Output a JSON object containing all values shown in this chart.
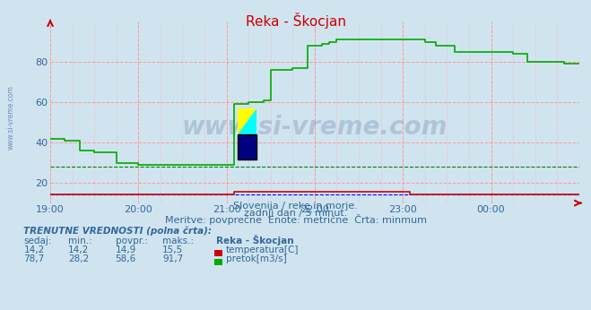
{
  "title": "Reka - Škocjan",
  "background_color": "#d0e4f0",
  "plot_bg_color": "#d0e4f0",
  "grid_color": "#ff9999",
  "xlim": [
    0,
    288
  ],
  "ylim": [
    10,
    100
  ],
  "yticks": [
    20,
    40,
    60,
    80
  ],
  "xtick_labels": [
    "19:00",
    "20:00",
    "21:00",
    "22:00",
    "23:00",
    "00:00"
  ],
  "xtick_positions": [
    0,
    48,
    96,
    144,
    192,
    240
  ],
  "subtitle1": "Slovenija / reke in morje.",
  "subtitle2": "zadnji dan / 5 minut.",
  "subtitle3": "Meritve: povprečne  Enote: metrične  Črta: minmum",
  "watermark": "www.si-vreme.com",
  "side_text": "www.si-vreme.com",
  "temp_color": "#cc0000",
  "flow_color": "#00aa00",
  "min_line_color_temp": "#0000ff",
  "min_line_color_flow": "#008800",
  "temp_min_y": 14.2,
  "flow_min_y": 28.2,
  "temp_data": [
    [
      0,
      14.5
    ],
    [
      96,
      14.5
    ],
    [
      100,
      15.5
    ],
    [
      192,
      15.5
    ],
    [
      196,
      14.2
    ],
    [
      240,
      14.2
    ],
    [
      288,
      14.2
    ]
  ],
  "flow_data": [
    [
      0,
      42
    ],
    [
      8,
      41
    ],
    [
      16,
      36
    ],
    [
      24,
      35
    ],
    [
      36,
      30
    ],
    [
      48,
      29
    ],
    [
      96,
      29
    ],
    [
      100,
      59
    ],
    [
      108,
      60
    ],
    [
      116,
      61
    ],
    [
      120,
      76
    ],
    [
      132,
      77
    ],
    [
      140,
      88
    ],
    [
      148,
      89
    ],
    [
      152,
      90
    ],
    [
      156,
      91
    ],
    [
      196,
      91
    ],
    [
      204,
      90
    ],
    [
      210,
      88
    ],
    [
      220,
      85
    ],
    [
      240,
      85
    ],
    [
      252,
      84
    ],
    [
      260,
      80
    ],
    [
      270,
      80
    ],
    [
      280,
      79
    ],
    [
      288,
      79
    ]
  ],
  "legend_items": [
    {
      "label": "temperatura[C]",
      "color": "#cc0000"
    },
    {
      "label": "pretok[m3/s]",
      "color": "#00aa00"
    }
  ],
  "table_title": "TRENUTNE VREDNOSTI (polna črta):",
  "table_headers": [
    "sedaj:",
    "min.:",
    "povpr.:",
    "maks.:",
    "Reka - Škocjan"
  ],
  "table_row1": [
    "14,2",
    "14,2",
    "14,9",
    "15,5"
  ],
  "table_row2": [
    "78,7",
    "28,2",
    "58,6",
    "91,7"
  ],
  "text_color": "#336699",
  "title_color": "#cc0000"
}
